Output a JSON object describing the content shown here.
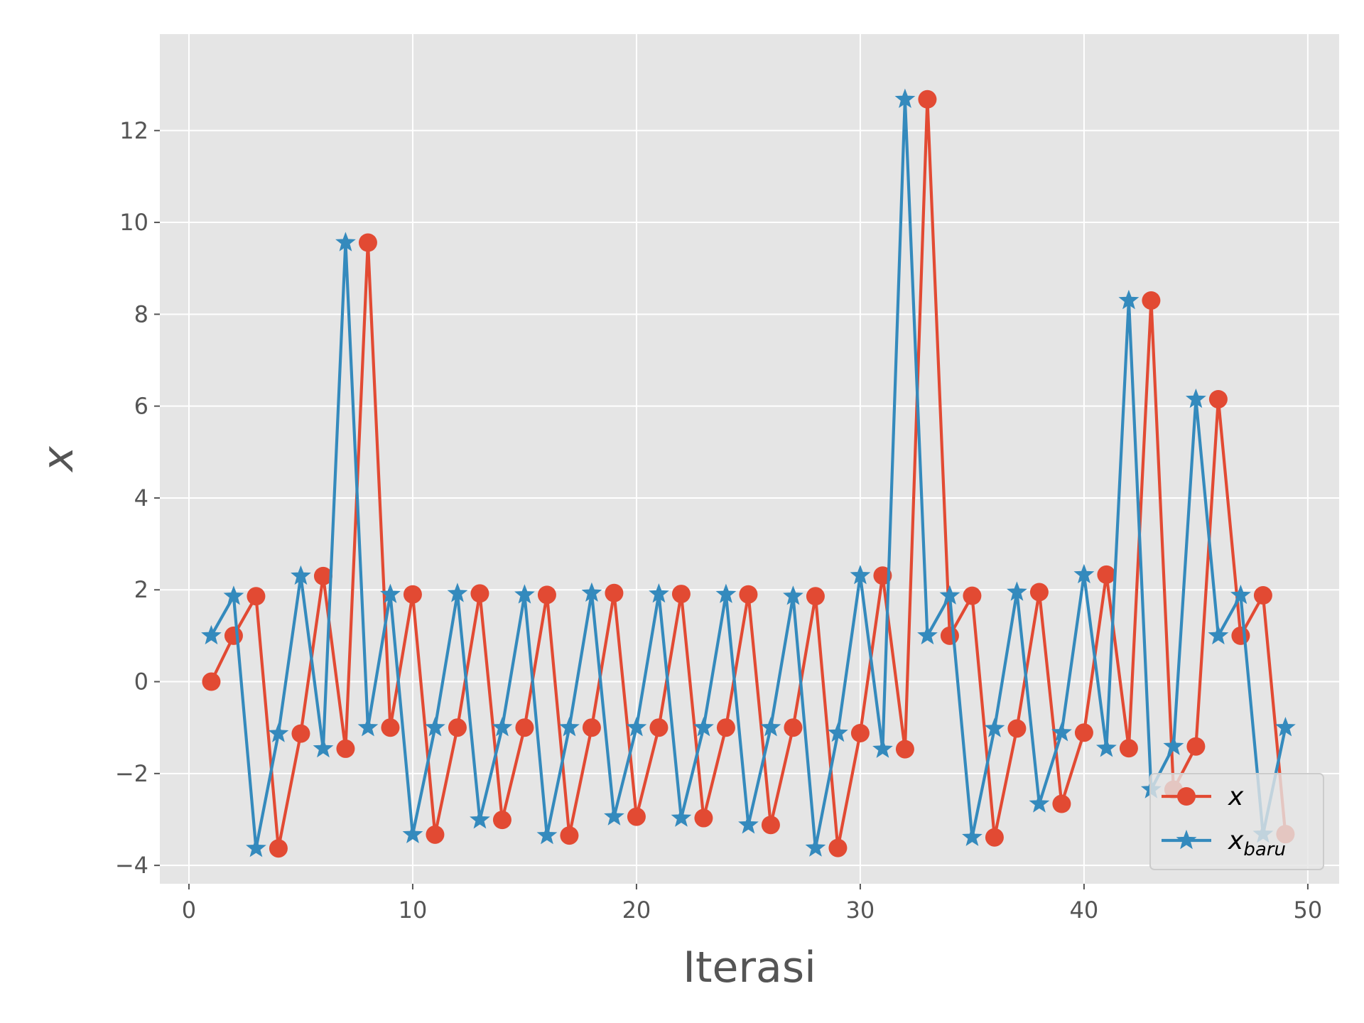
{
  "chart_data": {
    "type": "line",
    "xlabel": "Iterasi",
    "ylabel": "x",
    "xlim": [
      -1.3,
      51.4
    ],
    "ylim": [
      -4.4,
      14.1
    ],
    "xticks": [
      0,
      10,
      20,
      30,
      40,
      50
    ],
    "yticks": [
      -4,
      -2,
      0,
      2,
      4,
      6,
      8,
      10,
      12
    ],
    "ytick_labels": [
      "−4",
      "−2",
      "0",
      "2",
      "4",
      "6",
      "8",
      "10",
      "12"
    ],
    "grid": true,
    "legend_position": "lower-right",
    "background": "#e5e5e5",
    "series": [
      {
        "name": "x",
        "color": "#e24a33",
        "marker": "circle",
        "x": [
          1,
          2,
          3,
          4,
          5,
          6,
          7,
          8,
          9,
          10,
          11,
          12,
          13,
          14,
          15,
          16,
          17,
          18,
          19,
          20,
          21,
          22,
          23,
          24,
          25,
          26,
          27,
          28,
          29,
          30,
          31,
          32,
          33,
          34,
          35,
          36,
          37,
          38,
          39,
          40,
          41,
          42,
          43,
          44,
          45,
          46,
          47,
          48,
          49
        ],
        "y": [
          0,
          1,
          1.86,
          -3.63,
          -1.13,
          2.3,
          -1.46,
          9.56,
          -1,
          1.9,
          -3.33,
          -1,
          1.92,
          -3.01,
          -1,
          1.89,
          -3.35,
          -1,
          1.93,
          -2.94,
          -1,
          1.91,
          -2.97,
          -1,
          1.9,
          -3.12,
          -1,
          1.86,
          -3.62,
          -1.12,
          2.31,
          -1.47,
          12.68,
          1,
          1.87,
          -3.39,
          -1.02,
          1.95,
          -2.66,
          -1.11,
          2.33,
          -1.45,
          8.3,
          -2.35,
          -1.41,
          6.15,
          1,
          1.88,
          -3.32
        ]
      },
      {
        "name": "x_baru",
        "legend_main": "x",
        "legend_sub": "baru",
        "color": "#348abd",
        "marker": "star",
        "x": [
          1,
          2,
          3,
          4,
          5,
          6,
          7,
          8,
          9,
          10,
          11,
          12,
          13,
          14,
          15,
          16,
          17,
          18,
          19,
          20,
          21,
          22,
          23,
          24,
          25,
          26,
          27,
          28,
          29,
          30,
          31,
          32,
          33,
          34,
          35,
          36,
          37,
          38,
          39,
          40,
          41,
          42,
          43,
          44,
          45,
          46,
          47,
          48,
          49
        ],
        "y": [
          1,
          1.86,
          -3.63,
          -1.13,
          2.3,
          -1.46,
          9.56,
          -1,
          1.9,
          -3.33,
          -1,
          1.92,
          -3.01,
          -1,
          1.89,
          -3.35,
          -1,
          1.93,
          -2.94,
          -1,
          1.91,
          -2.97,
          -1,
          1.9,
          -3.12,
          -1,
          1.86,
          -3.62,
          -1.12,
          2.31,
          -1.47,
          12.68,
          1,
          1.87,
          -3.39,
          -1.02,
          1.95,
          -2.66,
          -1.11,
          2.33,
          -1.45,
          8.3,
          -2.35,
          -1.41,
          6.15,
          1,
          1.88,
          -3.32,
          -1
        ]
      }
    ]
  }
}
